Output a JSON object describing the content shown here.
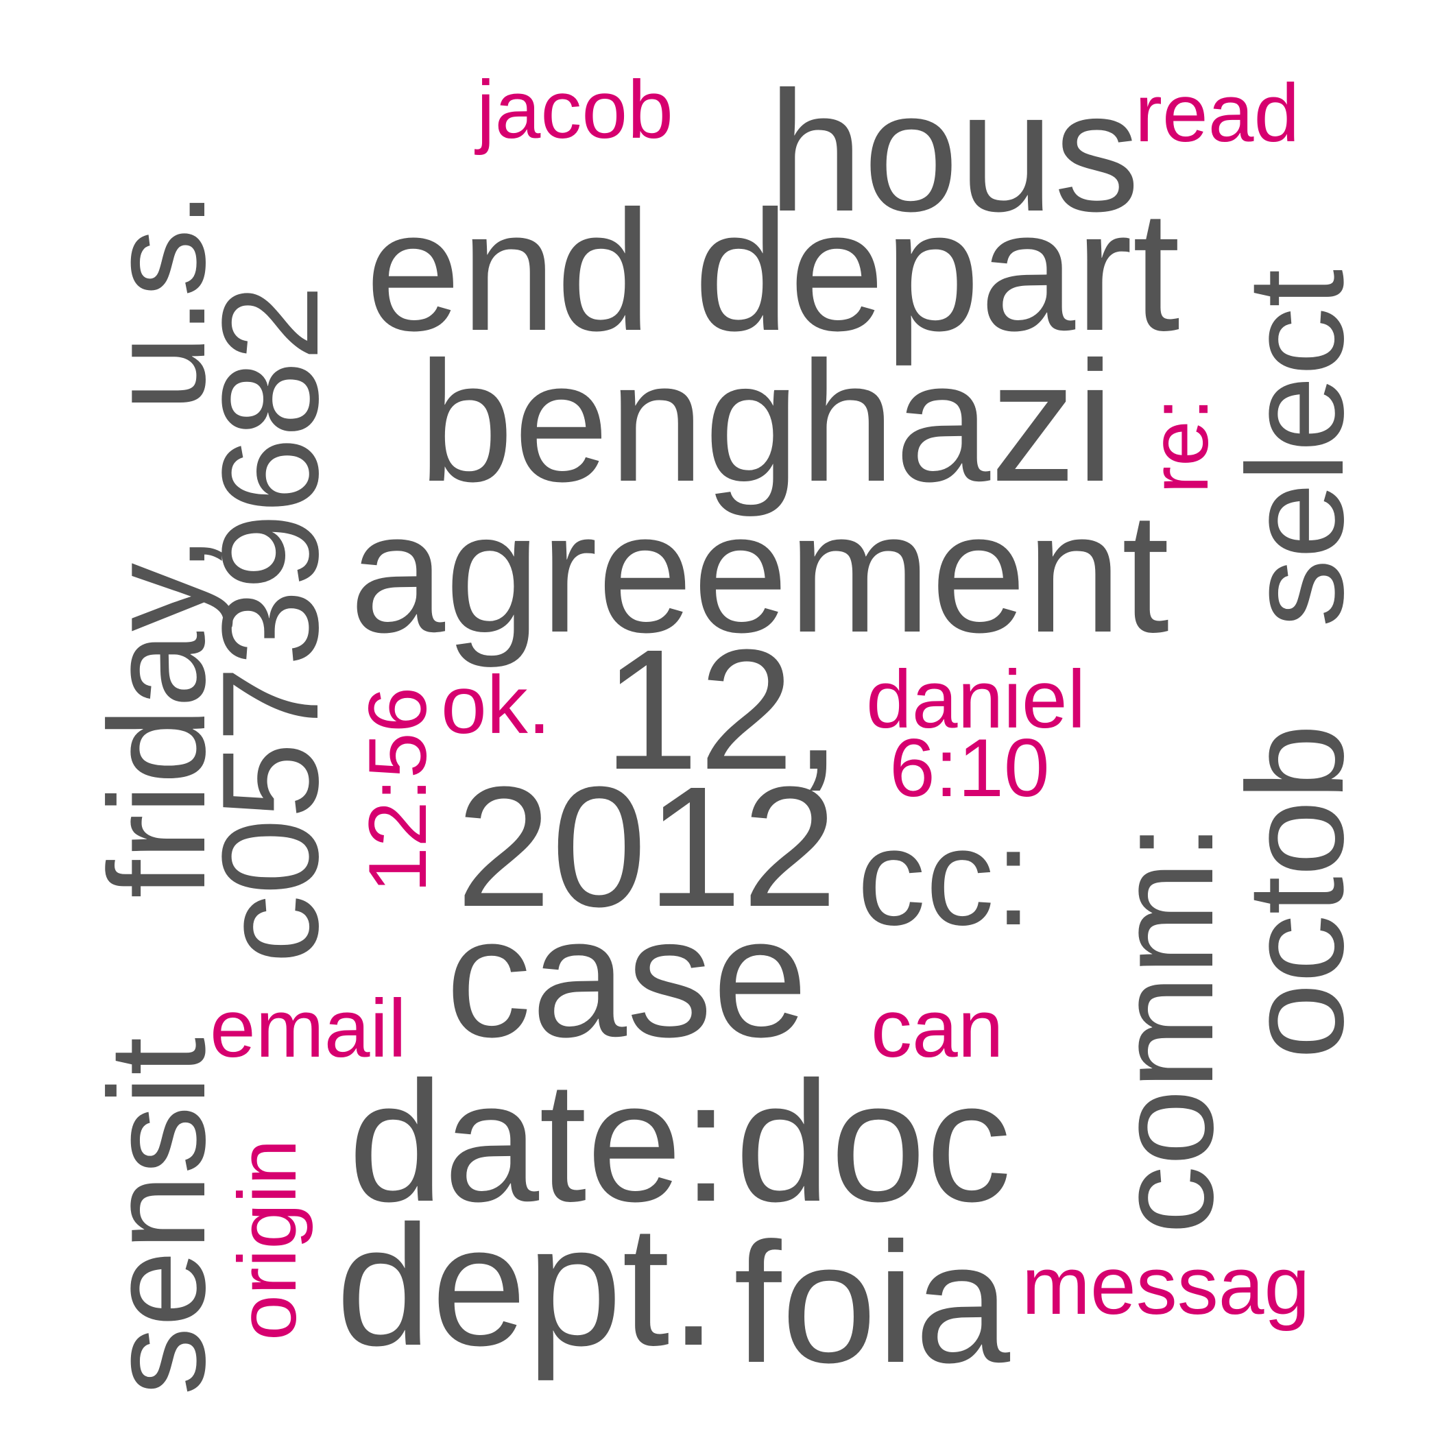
{
  "words": [
    {
      "text": "hous",
      "color": "#545454"
    },
    {
      "text": "end",
      "color": "#545454"
    },
    {
      "text": "depart",
      "color": "#545454"
    },
    {
      "text": "benghazi",
      "color": "#545454"
    },
    {
      "text": "agreement",
      "color": "#545454"
    },
    {
      "text": "12,",
      "color": "#545454"
    },
    {
      "text": "2012",
      "color": "#545454"
    },
    {
      "text": "case",
      "color": "#545454"
    },
    {
      "text": "date:",
      "color": "#545454"
    },
    {
      "text": "doc",
      "color": "#545454"
    },
    {
      "text": "dept.",
      "color": "#545454"
    },
    {
      "text": "foia",
      "color": "#545454"
    },
    {
      "text": "cc:",
      "color": "#545454"
    },
    {
      "text": "comm:",
      "color": "#545454"
    },
    {
      "text": "octob",
      "color": "#545454"
    },
    {
      "text": "select",
      "color": "#545454"
    },
    {
      "text": "sensit",
      "color": "#545454"
    },
    {
      "text": "friday,",
      "color": "#545454"
    },
    {
      "text": "u.s.",
      "color": "#545454"
    },
    {
      "text": "c05739682",
      "color": "#545454"
    },
    {
      "text": "jacob",
      "color": "#d6006f"
    },
    {
      "text": "read",
      "color": "#d6006f"
    },
    {
      "text": "re:",
      "color": "#d6006f"
    },
    {
      "text": "ok.",
      "color": "#d6006f"
    },
    {
      "text": "12:56",
      "color": "#d6006f"
    },
    {
      "text": "daniel",
      "color": "#d6006f"
    },
    {
      "text": "6:10",
      "color": "#d6006f"
    },
    {
      "text": "email",
      "color": "#d6006f"
    },
    {
      "text": "can",
      "color": "#d6006f"
    },
    {
      "text": "origin",
      "color": "#d6006f"
    },
    {
      "text": "messag",
      "color": "#d6006f"
    }
  ]
}
